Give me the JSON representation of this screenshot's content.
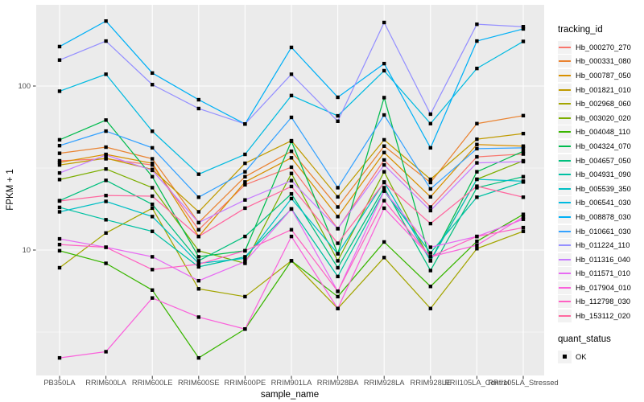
{
  "chart_data": {
    "type": "line",
    "xlabel": "sample_name",
    "ylabel": "FPKM + 1",
    "y_scale": "log10",
    "y_tick_labels": [
      "100",
      "10"
    ],
    "y_tick_values": [
      100,
      10
    ],
    "y_minor_gridlines": [
      31.62,
      3.162
    ],
    "ylim": [
      1.9,
      310
    ],
    "grid": "on",
    "legend": {
      "title": "tracking_id",
      "position": "right"
    },
    "quant_legend": {
      "title": "quant_status",
      "items": [
        "OK"
      ]
    },
    "marker": {
      "shape": "square",
      "color": "#000000",
      "meaning": "OK"
    },
    "categories": [
      "PB350LA",
      "RRIM600LA",
      "RRIM600LE",
      "RRIM600SE",
      "RRIM600PE",
      "RRIM901LA",
      "RRIM928BA",
      "RRIM928LA",
      "RRIM928LE",
      "RRII105LA_Control",
      "RRII105LA_Stressed"
    ],
    "series": [
      {
        "name": "Hb_000270_270",
        "color": "#F8766D",
        "values": [
          35,
          36,
          33,
          13.3,
          25,
          32,
          13.5,
          35.4,
          18.3,
          37,
          38.5
        ]
      },
      {
        "name": "Hb_000331_080",
        "color": "#EA8331",
        "values": [
          38.9,
          42.4,
          36,
          14.7,
          28,
          40,
          18.3,
          43,
          25.8,
          59,
          66
        ]
      },
      {
        "name": "Hb_000787_050",
        "color": "#D89000",
        "values": [
          34.2,
          38.3,
          33.8,
          12.1,
          26,
          36.5,
          16,
          39.3,
          21.1,
          44,
          43
        ]
      },
      {
        "name": "Hb_001821_010",
        "color": "#C09B00",
        "values": [
          33,
          36.3,
          31,
          17.1,
          33.8,
          46.4,
          21.1,
          47,
          27,
          47.4,
          51.3
        ]
      },
      {
        "name": "Hb_002968_060",
        "color": "#A3A500",
        "values": [
          7.8,
          12.7,
          18,
          5.8,
          5.2,
          8.6,
          4.4,
          9,
          4.4,
          10.2,
          13
        ]
      },
      {
        "name": "Hb_003020_020",
        "color": "#7CAE00",
        "values": [
          26.9,
          31.2,
          24,
          9.9,
          8.3,
          29.3,
          8.6,
          30,
          8.6,
          27,
          35
        ]
      },
      {
        "name": "Hb_004048_110",
        "color": "#39B600",
        "values": [
          9.9,
          8.3,
          5.7,
          2.2,
          3.3,
          8.6,
          5.2,
          11.2,
          6,
          11.3,
          16.5
        ]
      },
      {
        "name": "Hb_004324_070",
        "color": "#00BB4E",
        "values": [
          47,
          62,
          28,
          9.1,
          9.9,
          46,
          9.5,
          85,
          8.6,
          30,
          40
        ]
      },
      {
        "name": "Hb_004657_050",
        "color": "#00BF7D",
        "values": [
          20,
          26.6,
          19,
          8.6,
          12.1,
          22,
          7.8,
          24,
          7.5,
          24,
          28
        ]
      },
      {
        "name": "Hb_004931_090",
        "color": "#00C1A3",
        "values": [
          18.2,
          15.3,
          13,
          7.9,
          9.1,
          17.8,
          6.9,
          22.9,
          9.6,
          21,
          26
        ]
      },
      {
        "name": "Hb_005539_350",
        "color": "#00BFC4",
        "values": [
          17.1,
          19.8,
          16,
          8.3,
          8.9,
          20.6,
          9.5,
          26,
          8.6,
          27,
          26.3
        ]
      },
      {
        "name": "Hb_006541_030",
        "color": "#00BAE0",
        "values": [
          93,
          118,
          53,
          29,
          38.3,
          87.5,
          65.8,
          124,
          59,
          128,
          187
        ]
      },
      {
        "name": "Hb_008878_030",
        "color": "#00B0F6",
        "values": [
          174,
          249,
          120,
          82.5,
          58.7,
          172,
          85.4,
          137,
          42,
          188,
          223
        ]
      },
      {
        "name": "Hb_010661_030",
        "color": "#35A2FF",
        "values": [
          43.3,
          53.1,
          42,
          21,
          30,
          64.4,
          24,
          66.6,
          23.6,
          41.5,
          42
        ]
      },
      {
        "name": "Hb_011224_110",
        "color": "#9590FF",
        "values": [
          144,
          188,
          102,
          72.9,
          58.7,
          118,
          61,
          244,
          67.4,
          238,
          230
        ]
      },
      {
        "name": "Hb_011316_040",
        "color": "#C77CFF",
        "values": [
          29.5,
          38,
          30.6,
          14.7,
          20.2,
          26.5,
          13.5,
          33,
          17.4,
          34,
          34.6
        ]
      },
      {
        "name": "Hb_011571_010",
        "color": "#E76BF3",
        "values": [
          11.7,
          10.4,
          9.1,
          6.5,
          8.5,
          17.8,
          5.6,
          22.9,
          10.4,
          12.1,
          15.4
        ]
      },
      {
        "name": "Hb_017904_010",
        "color": "#FA62DB",
        "values": [
          2.2,
          2.4,
          5.1,
          3.9,
          3.3,
          12.1,
          4.4,
          18,
          9.1,
          10.7,
          15.9
        ]
      },
      {
        "name": "Hb_112798_030",
        "color": "#FF61C3",
        "values": [
          10.8,
          10.4,
          7.6,
          8.2,
          9.9,
          13.3,
          5.6,
          20,
          9.1,
          12.1,
          13.7
        ]
      },
      {
        "name": "Hb_153112_020",
        "color": "#FF689F",
        "values": [
          19.9,
          21.5,
          21.3,
          12.1,
          18,
          24.4,
          11,
          25.8,
          14.5,
          24.5,
          21
        ]
      }
    ]
  },
  "style_colors": {
    "panel_background": "#EBEBEB",
    "gridline": "#FFFFFF",
    "tick_text": "#4D4D4D",
    "tick_mark": "#333333",
    "legend_key_background": "#F2F2F2"
  }
}
